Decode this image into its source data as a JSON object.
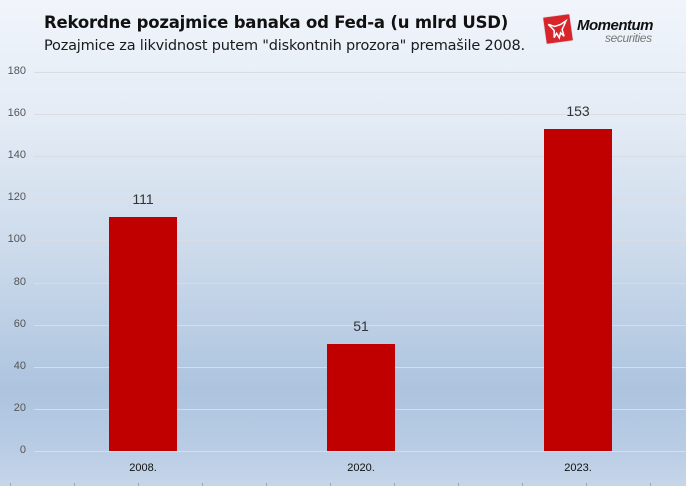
{
  "header": {
    "title": "Rekordne pozajmice banaka od Fed-a (u mlrd USD)",
    "subtitle": "Pozajmice za likvidnost putem \"diskontnih prozora\" premašile 2008."
  },
  "logo": {
    "name": "Momentum",
    "sub": "securities",
    "color": "#d7252b"
  },
  "chart_data": {
    "type": "bar",
    "title": "Rekordne pozajmice banaka od Fed-a (u mlrd USD)",
    "subtitle": "Pozajmice za likvidnost putem \"diskontnih prozora\" premašile 2008.",
    "categories": [
      "2008.",
      "2020.",
      "2023."
    ],
    "values": [
      111,
      51,
      153
    ],
    "data_labels": [
      "111",
      "51",
      "153"
    ],
    "xlabel": "",
    "ylabel": "",
    "ylim": [
      0,
      180
    ],
    "yticks": [
      "0",
      "20",
      "40",
      "60",
      "80",
      "100",
      "120",
      "140",
      "160",
      "180"
    ],
    "grid": true,
    "legend": "none",
    "bar_color": "#c00000"
  }
}
